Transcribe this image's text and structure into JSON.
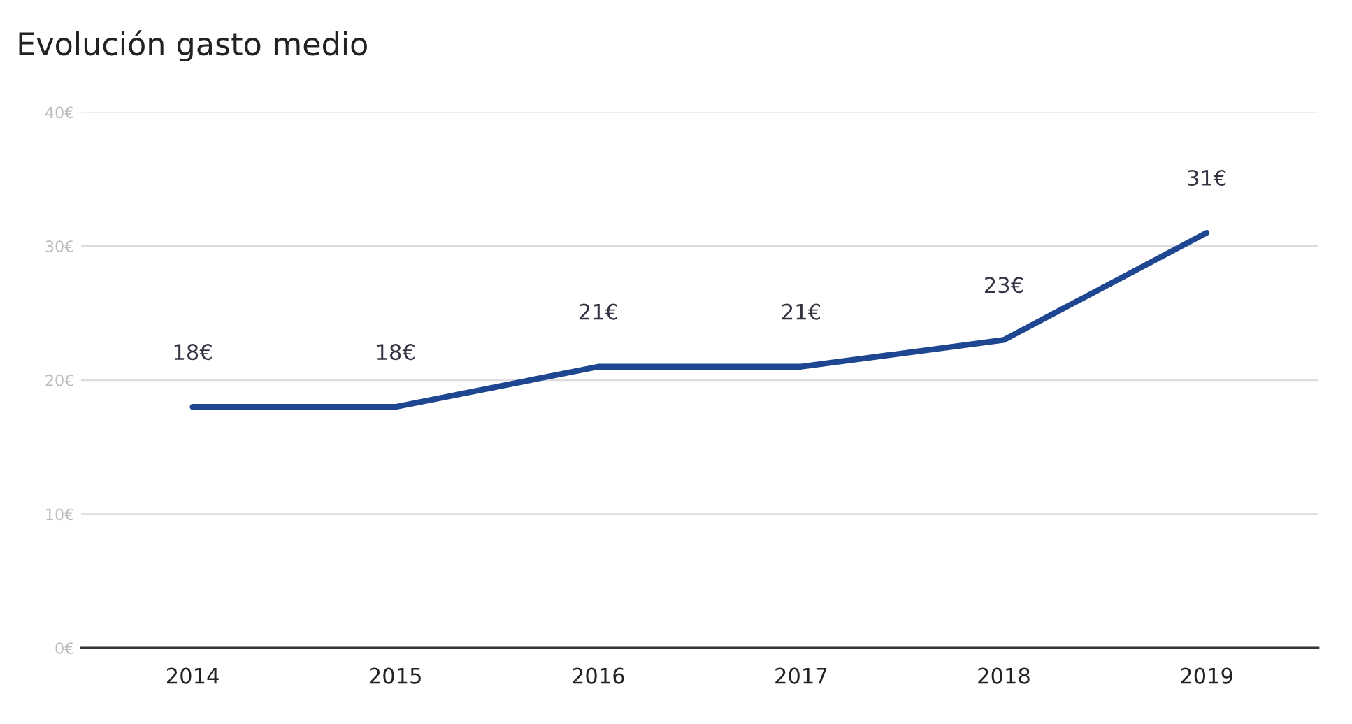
{
  "chart_data": {
    "type": "line",
    "title": "Evolución gasto medio",
    "categories": [
      "2014",
      "2015",
      "2016",
      "2017",
      "2018",
      "2019"
    ],
    "series": [
      {
        "color": "#1f4690",
        "values": [
          18,
          18,
          21,
          21,
          23,
          31
        ]
      }
    ],
    "value_labels": [
      "18€",
      "18€",
      "21€",
      "21€",
      "23€",
      "31€"
    ],
    "ylim": [
      0,
      40
    ],
    "yticks": [
      {
        "value": 0,
        "label": "0€"
      },
      {
        "value": 10,
        "label": "10€"
      },
      {
        "value": 20,
        "label": "20€"
      },
      {
        "value": 30,
        "label": "30€"
      },
      {
        "value": 40,
        "label": "40€"
      }
    ],
    "grid": "y",
    "marker": "none",
    "line_style": "solid"
  }
}
